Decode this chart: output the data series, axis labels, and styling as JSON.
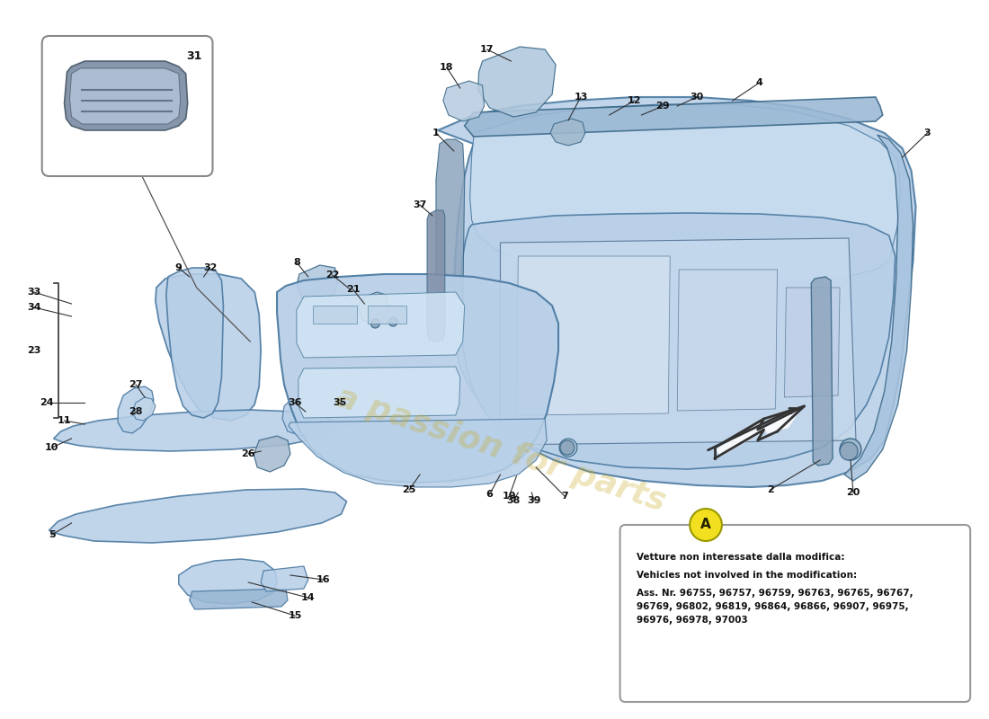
{
  "bg_color": "#ffffff",
  "lb": "#b8cfe8",
  "mb": "#9ab8d4",
  "db": "#7a9cb8",
  "edge": "#4a7090",
  "watermark_color": "#c8a820",
  "watermark_text": "a passion for parts",
  "info_box": {
    "title_label": "A",
    "title_bg": "#f2e020",
    "line1": "Vetture non interessate dalla modifica:",
    "line2": "Vehicles not involved in the modification:",
    "line3": "Ass. Nr. 96755, 96757, 96759, 96763, 96765, 96767,",
    "line4": "96769, 96802, 96819, 96864, 96866, 96907, 96975,",
    "line5": "96976, 96978, 97003"
  }
}
